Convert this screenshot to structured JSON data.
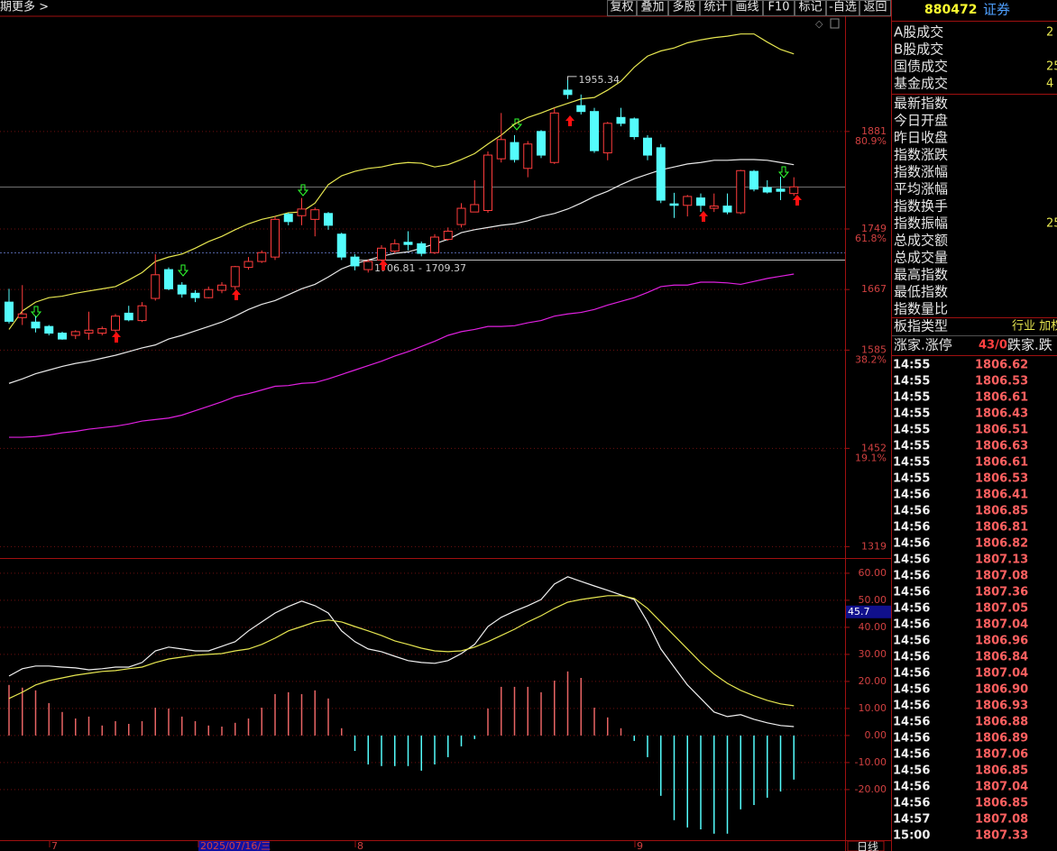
{
  "toolbar": {
    "left": [
      "期",
      "更多 >"
    ],
    "buttons": [
      "复权",
      "叠加",
      "多股",
      "统计",
      "画线",
      "F10",
      "标记",
      "-自选",
      "返回"
    ]
  },
  "chart_data": [
    {
      "type": "candlestick",
      "ylim": [
        1306,
        2037
      ],
      "yticks": [
        1881,
        1749,
        1667,
        1585,
        1452,
        1319
      ],
      "fib_levels": [
        {
          "value": 1881,
          "label": "80.9%"
        },
        {
          "value": 1749,
          "label": "61.8%"
        },
        {
          "value": 1585,
          "label": "38.2%"
        },
        {
          "value": 1452,
          "label": "19.1%"
        }
      ],
      "grid": true,
      "up_color": "#ff3c3c",
      "down_color": "#54fcfc",
      "open": [
        1650,
        1629,
        1623,
        1617,
        1608,
        1605,
        1608,
        1608,
        1612,
        1635,
        1625,
        1655,
        1694,
        1673,
        1662,
        1656,
        1666,
        1671,
        1697,
        1705,
        1711,
        1769,
        1767,
        1762,
        1770,
        1742,
        1711,
        1694,
        1707,
        1719,
        1731,
        1729,
        1717,
        1735,
        1755,
        1772,
        1774,
        1844,
        1866,
        1831,
        1881,
        1839,
        1937,
        1916,
        1908,
        1852,
        1900,
        1898,
        1872,
        1859,
        1783,
        1781,
        1791,
        1777,
        1780,
        1771,
        1827,
        1805,
        1803,
        1797
      ],
      "high": [
        1668,
        1673,
        1631,
        1619,
        1610,
        1612,
        1637,
        1617,
        1634,
        1645,
        1650,
        1715,
        1697,
        1677,
        1666,
        1671,
        1677,
        1699,
        1711,
        1720,
        1766,
        1771,
        1791,
        1778,
        1772,
        1744,
        1715,
        1708,
        1727,
        1735,
        1746,
        1732,
        1742,
        1751,
        1784,
        1815,
        1854,
        1906,
        1876,
        1868,
        1883,
        1913,
        1955.34,
        1931,
        1913,
        1894,
        1913,
        1900,
        1876,
        1864,
        1798,
        1795,
        1797,
        1797,
        1797,
        1829,
        1829,
        1815,
        1820,
        1819
      ],
      "low": [
        1621,
        1619,
        1609,
        1605,
        1599,
        1600,
        1599,
        1605,
        1609,
        1624,
        1623,
        1652,
        1666,
        1656,
        1650,
        1655,
        1662,
        1667,
        1694,
        1703,
        1707,
        1754,
        1754,
        1739,
        1748,
        1707,
        1693,
        1690,
        1705,
        1716,
        1720,
        1712,
        1715,
        1733,
        1751,
        1772,
        1771,
        1839,
        1839,
        1819,
        1845,
        1837,
        1925,
        1904,
        1852,
        1842,
        1888,
        1870,
        1842,
        1784,
        1764,
        1766,
        1772,
        1772,
        1769,
        1769,
        1800,
        1797,
        1788,
        1794
      ],
      "close": [
        1624,
        1634,
        1615,
        1608,
        1600,
        1610,
        1612,
        1614,
        1631,
        1626,
        1645,
        1687,
        1668,
        1661,
        1656,
        1667,
        1673,
        1698,
        1705,
        1717,
        1762,
        1759,
        1776,
        1775,
        1754,
        1711,
        1699,
        1705,
        1723,
        1729,
        1728,
        1716,
        1738,
        1746,
        1777,
        1782,
        1849,
        1870,
        1843,
        1864,
        1849,
        1906,
        1931,
        1908,
        1855,
        1892,
        1892,
        1874,
        1849,
        1788,
        1781,
        1793,
        1781,
        1780,
        1772,
        1828,
        1803,
        1799,
        1800,
        1806
      ],
      "lines": [
        {
          "color": "#e6e650",
          "values": [
            1613,
            1638,
            1650,
            1656,
            1658,
            1662,
            1665,
            1668,
            1671,
            1680,
            1690,
            1705,
            1711,
            1715,
            1723,
            1732,
            1739,
            1748,
            1756,
            1762,
            1766,
            1771,
            1772,
            1784,
            1809,
            1821,
            1827,
            1831,
            1833,
            1837,
            1839,
            1838,
            1833,
            1836,
            1843,
            1851,
            1864,
            1876,
            1891,
            1900,
            1906,
            1913,
            1919,
            1925,
            1927,
            1937,
            1949,
            1968,
            1983,
            1990,
            1994,
            2001,
            2005,
            2008,
            2010,
            2013,
            2013,
            2002,
            1992,
            1986
          ]
        },
        {
          "color": "#e8e8e8",
          "values": [
            1540,
            1546,
            1553,
            1558,
            1563,
            1567,
            1570,
            1574,
            1578,
            1583,
            1588,
            1592,
            1600,
            1605,
            1611,
            1617,
            1623,
            1631,
            1640,
            1647,
            1652,
            1660,
            1668,
            1674,
            1684,
            1695,
            1702,
            1707,
            1712,
            1716,
            1718,
            1723,
            1729,
            1735,
            1744,
            1748,
            1751,
            1754,
            1756,
            1760,
            1766,
            1770,
            1776,
            1784,
            1793,
            1800,
            1809,
            1817,
            1823,
            1829,
            1833,
            1837,
            1839,
            1842,
            1842,
            1843,
            1843,
            1842,
            1839,
            1836
          ]
        },
        {
          "color": "#e020e0",
          "values": [
            1467,
            1467,
            1468,
            1470,
            1473,
            1475,
            1478,
            1480,
            1482,
            1485,
            1489,
            1491,
            1493,
            1497,
            1503,
            1509,
            1515,
            1522,
            1526,
            1531,
            1536,
            1537,
            1540,
            1541,
            1546,
            1552,
            1558,
            1564,
            1570,
            1577,
            1583,
            1590,
            1597,
            1605,
            1610,
            1613,
            1617,
            1617,
            1618,
            1622,
            1625,
            1631,
            1634,
            1636,
            1640,
            1646,
            1651,
            1656,
            1663,
            1671,
            1673,
            1673,
            1677,
            1677,
            1676,
            1674,
            1678,
            1682,
            1685,
            1688
          ]
        }
      ],
      "low_annotation": "1706.81 - 1709.37",
      "x_labels": [
        "7",
        "2025/07/16/三",
        "8",
        "9"
      ],
      "period": "日线"
    },
    {
      "type": "macd",
      "ylim": [
        -38.7,
        65.3
      ],
      "yticks": [
        {
          "value": 60,
          "label": "60.00"
        },
        {
          "value": 50,
          "label": "50.00"
        },
        {
          "value": 40,
          "label": "40.00"
        },
        {
          "value": 30,
          "label": "30.00"
        },
        {
          "value": 20,
          "label": "20.00"
        },
        {
          "value": 10,
          "label": "10.00"
        },
        {
          "value": 0,
          "label": "0.00"
        },
        {
          "value": -10,
          "label": "-10.00"
        },
        {
          "value": -20,
          "label": "-20.00"
        }
      ],
      "grid": true,
      "bar_up_color": "#e86464",
      "bar_down_color": "#54fcfc",
      "bars": [
        18.7,
        17.7,
        16.7,
        12,
        8.7,
        6.3,
        7,
        3.7,
        5.3,
        4.3,
        5.3,
        10.3,
        10,
        7,
        5.3,
        3.7,
        3.3,
        4.7,
        6.3,
        10.3,
        15.3,
        16,
        15.3,
        16.7,
        13.7,
        2.7,
        -5.7,
        -10.7,
        -11.3,
        -11.3,
        -11.3,
        -13,
        -10.7,
        -8,
        -4,
        -1.3,
        10,
        18,
        18,
        18,
        16,
        20.3,
        23.7,
        21.3,
        10.3,
        6.7,
        2.7,
        -2,
        -8,
        -22.3,
        -31.3,
        -34,
        -34.7,
        -36.3,
        -36.3,
        -27.3,
        -25.7,
        -23,
        -20.7,
        -16.3
      ],
      "lines": [
        {
          "color": "#f0f0f0",
          "values": [
            22,
            24.7,
            25.7,
            25.7,
            25.3,
            25,
            24.3,
            24.7,
            25.3,
            25.3,
            27,
            31.3,
            32.7,
            32,
            31.3,
            31.3,
            33,
            34.7,
            38.7,
            42,
            45.3,
            47.7,
            49.7,
            48,
            45.3,
            38.7,
            34.7,
            32,
            31,
            29.3,
            27.7,
            27,
            26.7,
            27.7,
            30.3,
            33.7,
            40.3,
            43.7,
            46,
            48,
            50.3,
            56,
            58.7,
            57,
            55.3,
            53.7,
            52,
            50.3,
            42,
            32,
            25.3,
            18.7,
            13.7,
            8.7,
            7,
            7.7,
            6,
            4.7,
            3.7,
            3.3
          ]
        },
        {
          "color": "#e6e650",
          "values": [
            13.7,
            16,
            18.7,
            20.3,
            21.3,
            22.3,
            23,
            23.7,
            24,
            24.7,
            25.3,
            27,
            28.3,
            29,
            29.7,
            30,
            30.3,
            31.3,
            32,
            33.7,
            36,
            38.7,
            40.3,
            42,
            42.7,
            42,
            40.3,
            38.7,
            37,
            35,
            33.7,
            32.3,
            31.3,
            31,
            31.3,
            32.7,
            34.7,
            37,
            39.3,
            42,
            44.3,
            47,
            49.3,
            50.3,
            51,
            51.7,
            51.7,
            50.7,
            47,
            42,
            37,
            32,
            27,
            22.7,
            19.3,
            16.7,
            14.7,
            13,
            11.7,
            11
          ]
        }
      ],
      "cursor_value": 45.7
    }
  ],
  "quote_panel": {
    "code": "880472",
    "name": "证券",
    "rows": [
      {
        "label": "A股成交",
        "value": "2"
      },
      {
        "label": "B股成交"
      },
      {
        "label": "国债成交",
        "value": "25"
      },
      {
        "label": "基金成交",
        "value": "4"
      },
      {
        "label": "最新指数"
      },
      {
        "label": "今日开盘"
      },
      {
        "label": "昨日收盘"
      },
      {
        "label": "指数涨跌"
      },
      {
        "label": "指数涨幅"
      },
      {
        "label": "平均涨幅"
      },
      {
        "label": "指数换手"
      },
      {
        "label": "指数振幅",
        "value": "25"
      },
      {
        "label": "总成交额"
      },
      {
        "label": "总成交量"
      },
      {
        "label": "最高指数"
      },
      {
        "label": "最低指数"
      },
      {
        "label": "指数量比"
      }
    ],
    "sector_type": {
      "label": "板指类型",
      "value": "行业 加权"
    },
    "breadth": {
      "label": "涨家.涨停",
      "value": "43/0",
      "label2": "跌家.跌"
    }
  },
  "trades": [
    [
      "14:55",
      "1806.62"
    ],
    [
      "14:55",
      "1806.53"
    ],
    [
      "14:55",
      "1806.61"
    ],
    [
      "14:55",
      "1806.43"
    ],
    [
      "14:55",
      "1806.51"
    ],
    [
      "14:55",
      "1806.63"
    ],
    [
      "14:55",
      "1806.61"
    ],
    [
      "14:55",
      "1806.53"
    ],
    [
      "14:56",
      "1806.41"
    ],
    [
      "14:56",
      "1806.85"
    ],
    [
      "14:56",
      "1806.81"
    ],
    [
      "14:56",
      "1806.82"
    ],
    [
      "14:56",
      "1807.13"
    ],
    [
      "14:56",
      "1807.08"
    ],
    [
      "14:56",
      "1807.36"
    ],
    [
      "14:56",
      "1807.05"
    ],
    [
      "14:56",
      "1807.04"
    ],
    [
      "14:56",
      "1806.96"
    ],
    [
      "14:56",
      "1806.84"
    ],
    [
      "14:56",
      "1807.04"
    ],
    [
      "14:56",
      "1806.90"
    ],
    [
      "14:56",
      "1806.93"
    ],
    [
      "14:56",
      "1806.88"
    ],
    [
      "14:56",
      "1806.89"
    ],
    [
      "14:56",
      "1807.06"
    ],
    [
      "14:56",
      "1806.85"
    ],
    [
      "14:56",
      "1807.04"
    ],
    [
      "14:56",
      "1806.85"
    ],
    [
      "14:57",
      "1807.08"
    ],
    [
      "15:00",
      "1807.33"
    ]
  ]
}
